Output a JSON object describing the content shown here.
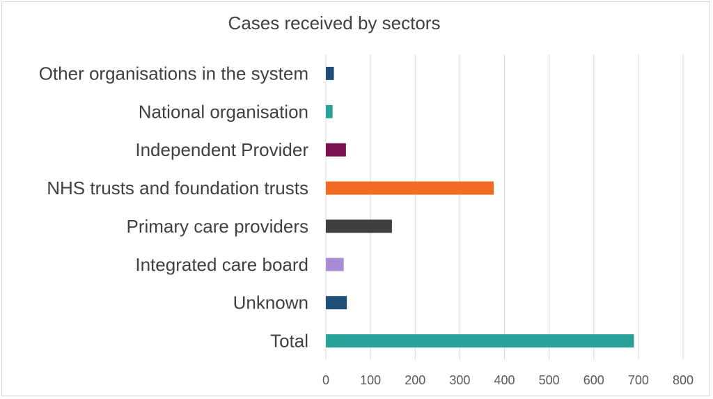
{
  "chart_data": {
    "type": "bar",
    "orientation": "horizontal",
    "title": "Cases received by sectors",
    "categories": [
      "Other organisations in the system",
      "National organisation",
      "Independent Provider",
      "NHS trusts and foundation trusts",
      "Primary care providers",
      "Integrated care board",
      "Unknown",
      "Total"
    ],
    "values": [
      18,
      15,
      45,
      376,
      148,
      40,
      47,
      690
    ],
    "bar_colors": [
      "#1f4e79",
      "#2aa198",
      "#7b1150",
      "#f26b21",
      "#3f3f3f",
      "#a98bd6",
      "#1f4e79",
      "#2aa198"
    ],
    "xlim": [
      0,
      800
    ],
    "xticks": [
      0,
      100,
      200,
      300,
      400,
      500,
      600,
      700,
      800
    ],
    "grid": true,
    "xlabel": "",
    "ylabel": ""
  }
}
